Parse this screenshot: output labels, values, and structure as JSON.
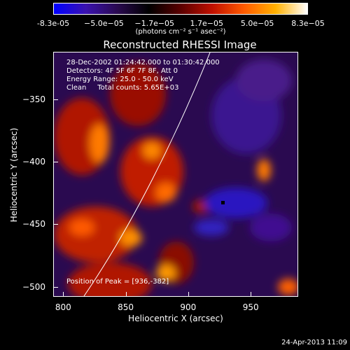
{
  "colorbar": {
    "tick_labels": [
      "-8.3e-05",
      "−5.0e−05",
      "−1.7e−05",
      "1.7e−05",
      "5.0e−05",
      "8.3e−05"
    ],
    "tick_values": [
      -8.3e-05,
      -5e-05,
      -1.7e-05,
      1.7e-05,
      5e-05,
      8.3e-05
    ],
    "range": [
      -8.3e-05,
      8.3e-05
    ],
    "units": "(photons cm⁻² s⁻¹ asec⁻²)",
    "colormap_stops": [
      "#0000ff",
      "#3a12b0",
      "#2a0a50",
      "#000000",
      "#5a0000",
      "#c01000",
      "#ff5a00",
      "#ffb000",
      "#ffffff"
    ]
  },
  "title": "Reconstructed RHESSI Image",
  "info": {
    "line1": "28-Dec-2002 01:24:42.000 to 01:30:42.000",
    "line2": "Detectors: 4F 5F 6F 7F 8F, Att 0",
    "line3": "Energy Range: 25.0 - 50.0 keV",
    "line4": "Clean     Total counts: 5.65E+03"
  },
  "axes": {
    "xlabel": "Heliocentric X (arcsec)",
    "ylabel": "Heliocentric Y (arcsec)",
    "x_ticks": [
      "800",
      "850",
      "900",
      "950"
    ],
    "x_tick_values": [
      800,
      850,
      900,
      950
    ],
    "y_ticks": [
      "−350",
      "−400",
      "−450",
      "−500"
    ],
    "y_tick_values": [
      -350,
      -400,
      -450,
      -500
    ],
    "xlim": [
      792,
      988
    ],
    "ylim": [
      -508,
      -312
    ]
  },
  "peak": {
    "text": "Position of Peak = [936,-382]"
  },
  "footer": "24-Apr-2013 11:09"
}
